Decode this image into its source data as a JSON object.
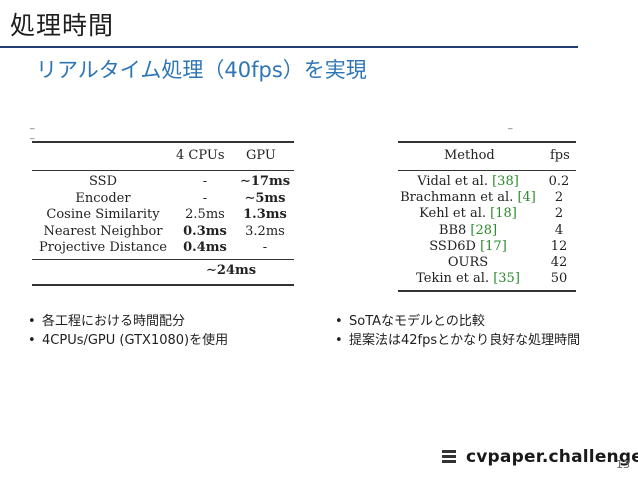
{
  "slide": {
    "title": "処理時間",
    "subtitle": "リアルタイム処理（40fps）を実現",
    "page_number": "13",
    "brand": "cvpaper.challenge"
  },
  "table_left": {
    "headers": [
      "4 CPUs",
      "GPU"
    ],
    "rows": [
      {
        "name": "SSD",
        "cpu": "-",
        "gpu": "∼17ms",
        "cpu_bold": false,
        "gpu_bold": true
      },
      {
        "name": "Encoder",
        "cpu": "-",
        "gpu": "∼5ms",
        "cpu_bold": false,
        "gpu_bold": true
      },
      {
        "name": "Cosine Similarity",
        "cpu": "2.5ms",
        "gpu": "1.3ms",
        "cpu_bold": false,
        "gpu_bold": true
      },
      {
        "name": "Nearest Neighbor",
        "cpu": "0.3ms",
        "gpu": "3.2ms",
        "cpu_bold": true,
        "gpu_bold": false
      },
      {
        "name": "Projective Distance",
        "cpu": "0.4ms",
        "gpu": "-",
        "cpu_bold": true,
        "gpu_bold": false
      }
    ],
    "total": "∼24ms"
  },
  "table_right": {
    "headers": [
      "Method",
      "fps"
    ],
    "rows": [
      {
        "method": "Vidal et al.",
        "cite": "[38]",
        "fps": "0.2"
      },
      {
        "method": "Brachmann et al.",
        "cite": "[4]",
        "fps": "2"
      },
      {
        "method": "Kehl et al.",
        "cite": "[18]",
        "fps": "2"
      },
      {
        "method": "BB8",
        "cite": "[28]",
        "fps": "4"
      },
      {
        "method": "SSD6D",
        "cite": "[17]",
        "fps": "12"
      },
      {
        "method": "OURS",
        "cite": "",
        "fps": "42"
      },
      {
        "method": "Tekin et al.",
        "cite": "[35]",
        "fps": "50"
      }
    ]
  },
  "bullets_left": [
    "各工程における時間配分",
    "4CPUs/GPU (GTX1080)を使用"
  ],
  "bullets_right": [
    "SoTAなモデルとの比較",
    "提案法は42fpsとかなり良好な処理時間"
  ]
}
